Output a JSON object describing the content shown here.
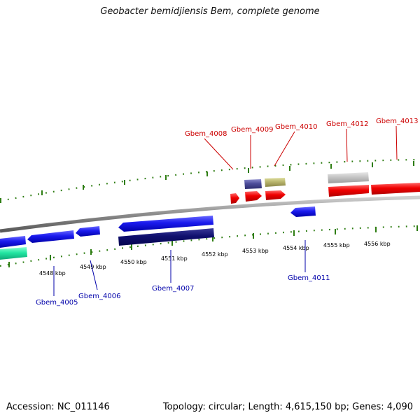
{
  "title": "Geobacter bemidjiensis Bem, complete genome",
  "footer": {
    "accession": "Accession: NC_011146",
    "summary": "Topology: circular; Length: 4,615,150 bp; Genes: 4,090"
  },
  "colors": {
    "forward_label": "#cc0000",
    "reverse_label": "#0000aa",
    "tick": "#2e7d12",
    "backbone": "#8c8c8c"
  },
  "scale_labels": [
    "4548 kbp",
    "4549 kbp",
    "4550 kbp",
    "4551 kbp",
    "4552 kbp",
    "4553 kbp",
    "4554 kbp",
    "4555 kbp",
    "4556 kbp"
  ],
  "genes": [
    {
      "name": "Gbem_4005",
      "strand": "reverse"
    },
    {
      "name": "Gbem_4006",
      "strand": "reverse"
    },
    {
      "name": "Gbem_4007",
      "strand": "reverse"
    },
    {
      "name": "Gbem_4008",
      "strand": "forward"
    },
    {
      "name": "Gbem_4009",
      "strand": "forward"
    },
    {
      "name": "Gbem_4010",
      "strand": "forward"
    },
    {
      "name": "Gbem_4011",
      "strand": "reverse"
    },
    {
      "name": "Gbem_4012",
      "strand": "forward"
    },
    {
      "name": "Gbem_4013",
      "strand": "forward"
    }
  ]
}
